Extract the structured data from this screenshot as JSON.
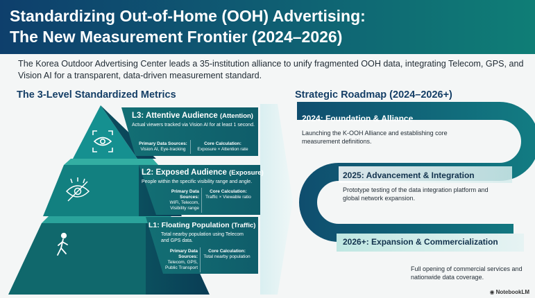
{
  "title_line1": "Standardizing Out-of-Home (OOH) Advertising:",
  "title_line2": "The New Measurement Frontier (2024–2026)",
  "intro": "The Korea Outdoor Advertising Center leads a 35-institution alliance to unify fragmented OOH data, integrating Telecom, GPS, and Vision AI for a transparent, data-driven measurement standard.",
  "pyramid": {
    "title": "The 3-Level Standardized Metrics",
    "levels": [
      {
        "head": "L3: Attentive Audience",
        "paren": "(Attention)",
        "desc": "Actual viewers tracked via Vision AI for at least 1 second.",
        "sources_label": "Primary Data Sources:",
        "sources": "Vision AI, Eye-tracking",
        "calc_label": "Core Calculation:",
        "calc": "Exposure × Attention rate",
        "icon": "eye-target-icon"
      },
      {
        "head": "L2: Exposed Audience",
        "paren": "(Exposure)",
        "desc": "People within the specific visibility range and angle.",
        "sources_label": "Primary Data Sources:",
        "sources": "WiFi, Telecom, Visibility range",
        "calc_label": "Core Calculation:",
        "calc": "Traffic × Viewable ratio",
        "icon": "eye-icon"
      },
      {
        "head": "L1: Floating Population",
        "paren": "(Traffic)",
        "desc": "Total nearby population using Telecom and GPS data.",
        "sources_label": "Primary Data Sources:",
        "sources": "Telecom, GPS, Public Transport",
        "calc_label": "Core Calculation:",
        "calc": "Total nearby population",
        "icon": "walking-person-icon"
      }
    ]
  },
  "roadmap": {
    "title": "Strategic Roadmap (2024–2026+)",
    "steps": [
      {
        "head": "2024: Foundation & Alliance",
        "desc": "Launching the K-OOH Alliance and establishing core measurement definitions."
      },
      {
        "head": "2025: Advancement & Integration",
        "desc": "Prototype testing of the data integration platform and global network expansion."
      },
      {
        "head": "2026+: Expansion & Commercialization",
        "desc": "Full opening of commercial services and nationwide data coverage."
      }
    ]
  },
  "brand": "NotebookLM",
  "colors": {
    "header_start": "#0e3f6c",
    "header_end": "#0f7e76",
    "teal_dark": "#0c5a63",
    "teal": "#138a86",
    "navy": "#143e66"
  }
}
